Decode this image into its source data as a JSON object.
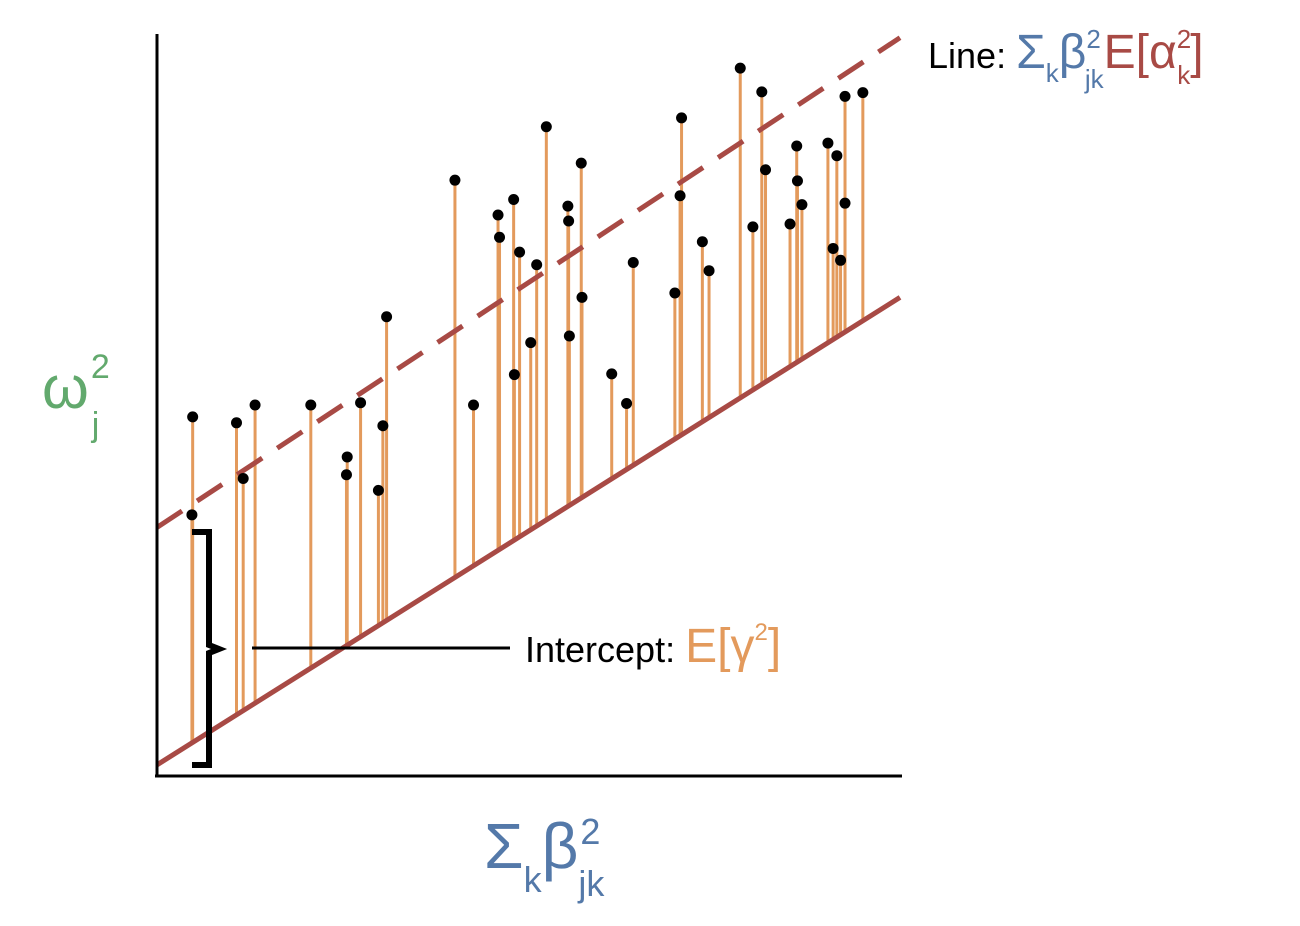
{
  "colors": {
    "axis": "#000000",
    "solid_line": "#a84a45",
    "dashed_line": "#a84a45",
    "stems": "#e39a5c",
    "points": "#000000",
    "beta_blue": "#5479a9",
    "alpha_red": "#a84a45",
    "omega_green": "#62a96d",
    "gamma_orange": "#e39a5c"
  },
  "labels": {
    "ylabel_main": "ω",
    "ylabel_sup": "2",
    "ylabel_sub": "j",
    "xlabel_sigma": "Σ",
    "xlabel_sub_k": "k",
    "xlabel_beta": "β",
    "xlabel_sup": "2",
    "xlabel_sub_jk": "jk",
    "line_prefix": "Line: ",
    "line_sigma": "Σ",
    "line_sub_k": "k",
    "line_beta": "β",
    "line_sup2": "2",
    "line_sub_jk": "jk",
    "line_E": "E[α",
    "line_sup2b": "2",
    "line_sub_k2": "k",
    "line_close": "]",
    "intercept_prefix": "Intercept: ",
    "intercept_expr": "E[γ",
    "intercept_sup": "2",
    "intercept_close": "]"
  },
  "chart_data": {
    "type": "scatter",
    "xlim": [
      0,
      100
    ],
    "ylim": [
      0,
      100
    ],
    "grid": false,
    "solid_line": {
      "intercept": 1.5,
      "slope": 0.63
    },
    "dashed_line": {
      "intercept": 33.5,
      "slope": 0.66
    },
    "points": [
      {
        "x": 4.7,
        "y": 35.2
      },
      {
        "x": 4.8,
        "y": 48.4
      },
      {
        "x": 10.7,
        "y": 47.6
      },
      {
        "x": 11.6,
        "y": 40.1
      },
      {
        "x": 13.2,
        "y": 50.0
      },
      {
        "x": 20.7,
        "y": 50.0
      },
      {
        "x": 25.5,
        "y": 40.6
      },
      {
        "x": 25.6,
        "y": 43.0
      },
      {
        "x": 27.4,
        "y": 50.3
      },
      {
        "x": 29.8,
        "y": 38.5
      },
      {
        "x": 30.4,
        "y": 47.2
      },
      {
        "x": 30.9,
        "y": 61.9
      },
      {
        "x": 40.1,
        "y": 80.3
      },
      {
        "x": 42.6,
        "y": 50.0
      },
      {
        "x": 45.9,
        "y": 75.6
      },
      {
        "x": 46.1,
        "y": 72.6
      },
      {
        "x": 48.0,
        "y": 77.7
      },
      {
        "x": 48.1,
        "y": 54.1
      },
      {
        "x": 48.8,
        "y": 70.6
      },
      {
        "x": 50.3,
        "y": 58.4
      },
      {
        "x": 51.1,
        "y": 68.9
      },
      {
        "x": 52.4,
        "y": 87.5
      },
      {
        "x": 55.3,
        "y": 76.8
      },
      {
        "x": 55.4,
        "y": 74.8
      },
      {
        "x": 55.5,
        "y": 59.3
      },
      {
        "x": 57.1,
        "y": 82.6
      },
      {
        "x": 57.2,
        "y": 64.5
      },
      {
        "x": 61.2,
        "y": 54.2
      },
      {
        "x": 63.2,
        "y": 50.2
      },
      {
        "x": 64.1,
        "y": 69.2
      },
      {
        "x": 69.7,
        "y": 65.1
      },
      {
        "x": 70.4,
        "y": 78.2
      },
      {
        "x": 70.6,
        "y": 88.7
      },
      {
        "x": 73.4,
        "y": 72.0
      },
      {
        "x": 74.3,
        "y": 68.1
      },
      {
        "x": 78.5,
        "y": 95.4
      },
      {
        "x": 80.2,
        "y": 74.0
      },
      {
        "x": 81.4,
        "y": 92.2
      },
      {
        "x": 81.9,
        "y": 81.7
      },
      {
        "x": 85.2,
        "y": 74.4
      },
      {
        "x": 86.1,
        "y": 84.9
      },
      {
        "x": 86.2,
        "y": 80.2
      },
      {
        "x": 86.8,
        "y": 77.0
      },
      {
        "x": 90.3,
        "y": 85.3
      },
      {
        "x": 91.0,
        "y": 71.1
      },
      {
        "x": 91.5,
        "y": 83.6
      },
      {
        "x": 92.0,
        "y": 69.5
      },
      {
        "x": 92.6,
        "y": 77.2
      },
      {
        "x": 92.6,
        "y": 91.6
      },
      {
        "x": 95.0,
        "y": 92.1
      }
    ]
  }
}
